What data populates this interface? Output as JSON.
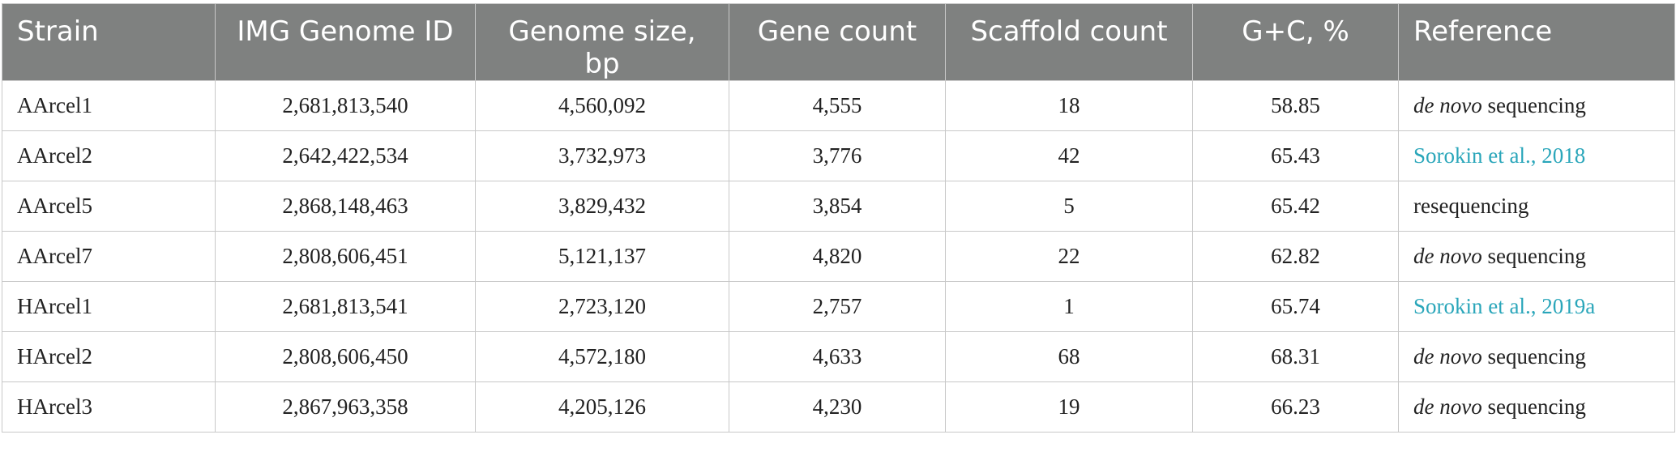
{
  "columns": [
    "Strain",
    "IMG Genome ID",
    "Genome size, bp",
    "Gene count",
    "Scaffold count",
    "G+C, %",
    "Reference"
  ],
  "rows": [
    {
      "strain": "AArcel1",
      "img_id": "2,681,813,540",
      "genome_size": "4,560,092",
      "gene_count": "4,555",
      "scaffold_count": "18",
      "gc": "58.85",
      "ref_italic": "de novo",
      "ref_text": " sequencing",
      "ref_link": null
    },
    {
      "strain": "AArcel2",
      "img_id": "2,642,422,534",
      "genome_size": "3,732,973",
      "gene_count": "3,776",
      "scaffold_count": "42",
      "gc": "65.43",
      "ref_italic": null,
      "ref_text": null,
      "ref_link": "Sorokin et al., 2018"
    },
    {
      "strain": "AArcel5",
      "img_id": "2,868,148,463",
      "genome_size": "3,829,432",
      "gene_count": "3,854",
      "scaffold_count": "5",
      "gc": "65.42",
      "ref_italic": null,
      "ref_text": "resequencing",
      "ref_link": null
    },
    {
      "strain": "AArcel7",
      "img_id": "2,808,606,451",
      "genome_size": "5,121,137",
      "gene_count": "4,820",
      "scaffold_count": "22",
      "gc": "62.82",
      "ref_italic": "de novo",
      "ref_text": " sequencing",
      "ref_link": null
    },
    {
      "strain": "HArcel1",
      "img_id": "2,681,813,541",
      "genome_size": "2,723,120",
      "gene_count": "2,757",
      "scaffold_count": "1",
      "gc": "65.74",
      "ref_italic": null,
      "ref_text": null,
      "ref_link": "Sorokin et al., 2019a"
    },
    {
      "strain": "HArcel2",
      "img_id": "2,808,606,450",
      "genome_size": "4,572,180",
      "gene_count": "4,633",
      "scaffold_count": "68",
      "gc": "68.31",
      "ref_italic": "de novo",
      "ref_text": " sequencing",
      "ref_link": null
    },
    {
      "strain": "HArcel3",
      "img_id": "2,867,963,358",
      "genome_size": "4,205,126",
      "gene_count": "4,230",
      "scaffold_count": "19",
      "gc": "66.23",
      "ref_italic": "de novo",
      "ref_text": " sequencing",
      "ref_link": null
    }
  ],
  "colors": {
    "header_bg": "#7f8180",
    "header_text": "#ffffff",
    "link": "#2aa6ba",
    "grid": "#c8c8c8"
  }
}
